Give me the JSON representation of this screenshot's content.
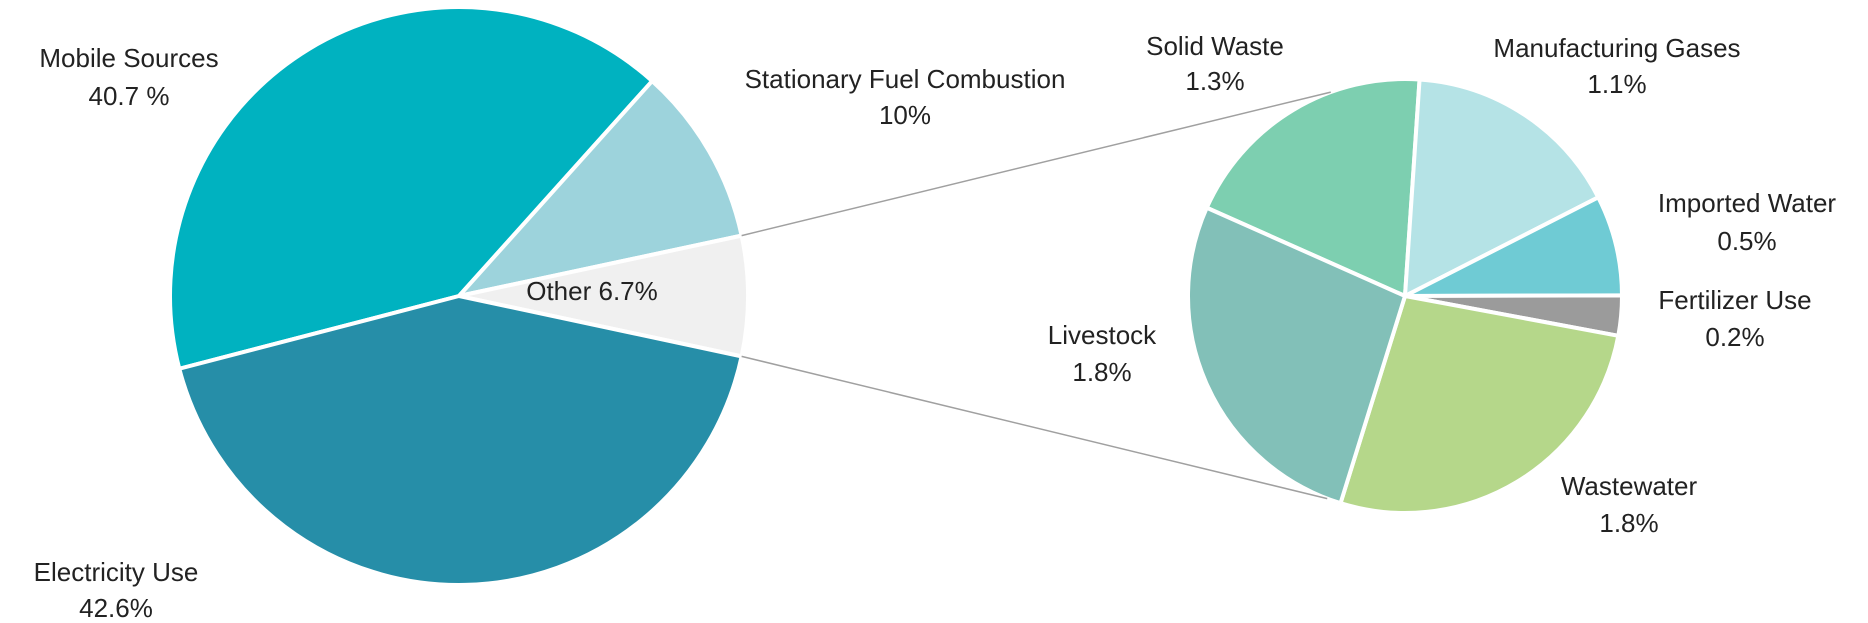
{
  "chart_data": [
    {
      "type": "pie",
      "categories": [
        "Mobile Sources",
        "Stationary Fuel Combustion",
        "Other",
        "Electricity Use"
      ],
      "values": [
        40.7,
        10,
        6.7,
        42.6
      ],
      "value_labels": [
        "40.7 %",
        "10%",
        "6.7%",
        "42.6%"
      ],
      "colors": [
        "#00b2c0",
        "#9dd3dc",
        "#f0f0f0",
        "#268ea8"
      ]
    },
    {
      "type": "pie",
      "categories": [
        "Solid Waste",
        "Manufacturing Gases",
        "Imported Water",
        "Fertilizer Use",
        "Wastewater",
        "Livestock"
      ],
      "values": [
        1.3,
        1.1,
        0.5,
        0.2,
        1.8,
        1.8
      ],
      "value_labels": [
        "1.3%",
        "1.1%",
        "0.5%",
        "0.2%",
        "1.8%",
        "1.8%"
      ],
      "colors": [
        "#7dcfb0",
        "#b5e3e6",
        "#6fcbd4",
        "#9b9b9b",
        "#b5d78a",
        "#82c0b8"
      ]
    }
  ]
}
